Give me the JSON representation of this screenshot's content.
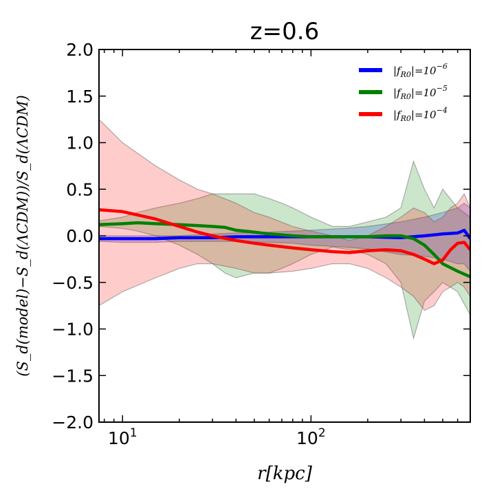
{
  "chart_data": {
    "type": "line",
    "title": "z=0.6",
    "xlabel": "r[kpc]",
    "ylabel": "(S_d(model)−S_d(ΛCDM))/S_d(ΛCDM)",
    "xscale": "log",
    "xlim": [
      7.5,
      700
    ],
    "ylim": [
      -2.0,
      2.0
    ],
    "x_tick_labels": [
      "10^1",
      "10^2"
    ],
    "y_tick_labels": [
      "2.0",
      "1.5",
      "1.0",
      "0.5",
      "0.0",
      "−0.5",
      "−1.0",
      "−1.5",
      "−2.0"
    ],
    "legend_location": "top-right",
    "colors": {
      "blue": "#0000ff",
      "green": "#008000",
      "red": "#ff0000"
    },
    "series": [
      {
        "name": "|f_R0|=10^-6",
        "legend_base": "|f",
        "legend_sub": "R0",
        "legend_mid": "|=10",
        "legend_exp": "−6",
        "color": "#0000ff",
        "x": [
          7.5,
          10,
          15,
          20,
          30,
          40,
          60,
          80,
          100,
          150,
          200,
          300,
          400,
          500,
          600,
          650,
          700
        ],
        "y": [
          -0.03,
          -0.03,
          -0.03,
          -0.02,
          -0.02,
          -0.01,
          -0.01,
          -0.01,
          -0.01,
          -0.01,
          -0.01,
          -0.02,
          0.0,
          0.02,
          0.03,
          0.06,
          -0.03
        ],
        "upper": [
          0.0,
          0.0,
          0.0,
          0.0,
          0.02,
          0.03,
          0.04,
          0.05,
          0.06,
          0.08,
          0.1,
          0.15,
          0.2,
          0.25,
          0.3,
          0.35,
          0.3
        ],
        "lower": [
          -0.06,
          -0.07,
          -0.07,
          -0.06,
          -0.06,
          -0.06,
          -0.07,
          -0.08,
          -0.1,
          -0.12,
          -0.14,
          -0.2,
          -0.22,
          -0.25,
          -0.3,
          -0.3,
          -0.38
        ]
      },
      {
        "name": "|f_R0|=10^-5",
        "legend_base": "|f",
        "legend_sub": "R0",
        "legend_mid": "|=10",
        "legend_exp": "−5",
        "color": "#008000",
        "x": [
          7.5,
          10,
          12,
          15,
          20,
          25,
          30,
          35,
          40,
          50,
          60,
          70,
          80,
          100,
          130,
          160,
          200,
          250,
          300,
          350,
          400,
          450,
          500,
          600,
          700
        ],
        "y": [
          0.12,
          0.13,
          0.14,
          0.13,
          0.12,
          0.11,
          0.1,
          0.09,
          0.06,
          0.04,
          0.02,
          0.01,
          0.0,
          -0.01,
          -0.01,
          -0.01,
          -0.01,
          0.0,
          0.0,
          -0.03,
          -0.1,
          -0.2,
          -0.3,
          -0.38,
          -0.44
        ],
        "upper": [
          0.16,
          0.2,
          0.25,
          0.3,
          0.35,
          0.4,
          0.45,
          0.45,
          0.45,
          0.45,
          0.4,
          0.35,
          0.3,
          0.2,
          0.1,
          0.1,
          0.15,
          0.2,
          0.3,
          0.8,
          0.5,
          0.3,
          0.5,
          0.3,
          0.2
        ],
        "lower": [
          0.1,
          0.08,
          0.05,
          0.0,
          -0.1,
          -0.2,
          -0.3,
          -0.4,
          -0.45,
          -0.4,
          -0.4,
          -0.35,
          -0.3,
          -0.2,
          -0.12,
          -0.15,
          -0.2,
          -0.3,
          -0.5,
          -1.1,
          -0.7,
          -0.6,
          -0.5,
          -0.6,
          -0.85
        ]
      },
      {
        "name": "|f_R0|=10^-4",
        "legend_base": "|f",
        "legend_sub": "R0",
        "legend_mid": "|=10",
        "legend_exp": "−4",
        "color": "#ff0000",
        "x": [
          7.5,
          10,
          15,
          20,
          25,
          30,
          40,
          50,
          60,
          80,
          100,
          130,
          160,
          200,
          250,
          300,
          350,
          400,
          450,
          500,
          550,
          600,
          650,
          700
        ],
        "y": [
          0.28,
          0.26,
          0.18,
          0.1,
          0.04,
          0.0,
          -0.05,
          -0.08,
          -0.1,
          -0.13,
          -0.15,
          -0.17,
          -0.18,
          -0.16,
          -0.15,
          -0.16,
          -0.2,
          -0.25,
          -0.3,
          -0.26,
          -0.15,
          -0.08,
          -0.07,
          -0.15
        ],
        "upper": [
          1.25,
          1.0,
          0.75,
          0.6,
          0.5,
          0.45,
          0.35,
          0.25,
          0.2,
          0.1,
          0.05,
          0.0,
          -0.05,
          0.0,
          0.1,
          0.2,
          0.3,
          0.25,
          0.15,
          0.2,
          0.3,
          0.35,
          0.45,
          0.3
        ],
        "lower": [
          -0.75,
          -0.6,
          -0.45,
          -0.35,
          -0.3,
          -0.3,
          -0.35,
          -0.4,
          -0.4,
          -0.38,
          -0.35,
          -0.3,
          -0.3,
          -0.35,
          -0.45,
          -0.55,
          -0.65,
          -0.8,
          -0.75,
          -0.6,
          -0.55,
          -0.5,
          -0.55,
          -0.65
        ]
      }
    ]
  }
}
